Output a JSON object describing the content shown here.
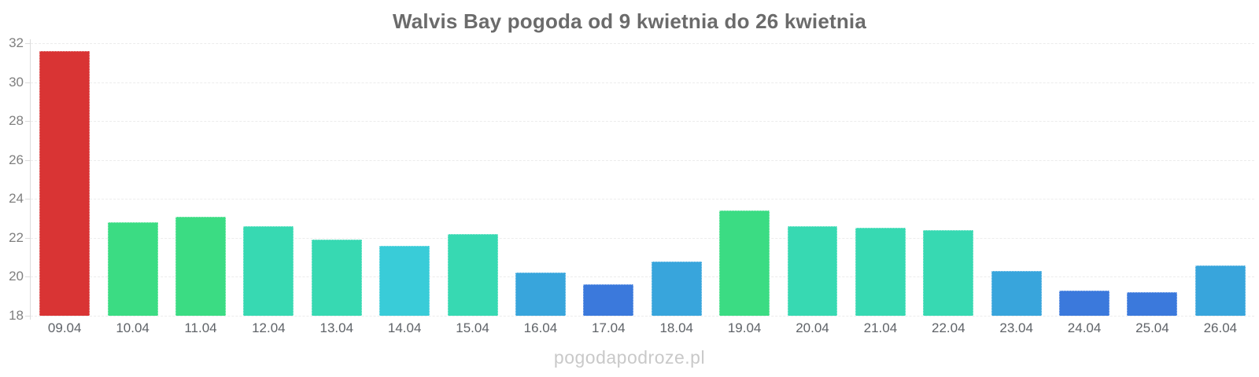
{
  "title": "Walvis Bay pogoda od 9 kwietnia do 26 kwietnia",
  "watermark": "pogodapodroze.pl",
  "palette": {
    "red": "#d93434",
    "green": "#3bdc83",
    "teal": "#37d9b2",
    "cyan": "#39ccd8",
    "blue": "#38a5dc",
    "royal_blue": "#3b79dc",
    "title_text": "#6b6b6b",
    "y_label_text": "#7f7f7f",
    "x_label_text": "#5f6368",
    "gridline": "#ececec",
    "axis_line": "#dcdcdc",
    "watermark_text": "#c9c9c9",
    "background": "#ffffff"
  },
  "chart_data": {
    "type": "bar",
    "title": "Walvis Bay pogoda od 9 kwietnia do 26 kwietnia",
    "xlabel": "",
    "ylabel": "",
    "legend": "none",
    "grid": "horizontal-dashed",
    "ylim": [
      18,
      32
    ],
    "yticks": [
      18,
      20,
      22,
      24,
      26,
      28,
      30,
      32
    ],
    "categories": [
      "09.04",
      "10.04",
      "11.04",
      "12.04",
      "13.04",
      "14.04",
      "15.04",
      "16.04",
      "17.04",
      "18.04",
      "19.04",
      "20.04",
      "21.04",
      "22.04",
      "23.04",
      "24.04",
      "25.04",
      "26.04"
    ],
    "values": [
      31.6,
      22.8,
      23.1,
      22.6,
      21.9,
      21.6,
      22.2,
      20.2,
      19.6,
      20.8,
      23.4,
      22.6,
      22.5,
      22.4,
      20.3,
      19.3,
      19.2,
      20.6
    ],
    "bar_colors": [
      "#d93434",
      "#3bdc83",
      "#3bdc83",
      "#37d9b2",
      "#37d9b2",
      "#39ccd8",
      "#37d9b2",
      "#38a5dc",
      "#3b79dc",
      "#38a5dc",
      "#3bdc83",
      "#37d9b2",
      "#37d9b2",
      "#37d9b2",
      "#38a5dc",
      "#3b79dc",
      "#3b79dc",
      "#38a5dc"
    ]
  }
}
